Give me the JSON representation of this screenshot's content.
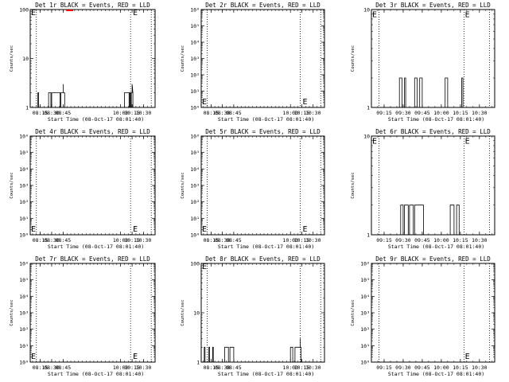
{
  "chart_data": [
    {
      "type": "line",
      "title": "Det 1r BLACK = Events, RED = LLD",
      "xlabel": "Start Time (08-Oct-17 08:01:40)",
      "ylabel": "Counts/sec",
      "xlim": [
        "08:02",
        "10:45"
      ],
      "x_ticks": [
        "08:15",
        "08:30",
        "08:45",
        "10:00",
        "10:15",
        "10:30"
      ],
      "y_scale": "log",
      "ylim": [
        1,
        100
      ],
      "y_ticks": [
        "1",
        "10",
        "100"
      ],
      "dotted_lines_x": [
        "08:10",
        "10:13",
        "10:40"
      ],
      "marker_labels": [
        {
          "text": "E",
          "x": "08:02",
          "y": 90
        },
        {
          "text": "E",
          "x": "10:15",
          "y": 90
        }
      ],
      "lld_indicator_x": [
        "08:49",
        "08:58"
      ],
      "series": [
        {
          "color": "#000000",
          "points": [
            [
              "08:12",
              1
            ],
            [
              "08:12",
              2
            ],
            [
              "08:13",
              2
            ],
            [
              "08:13",
              1
            ],
            [
              "08:26",
              1
            ],
            [
              "08:26",
              2
            ],
            [
              "08:29",
              2
            ],
            [
              "08:29",
              1
            ],
            [
              "08:30",
              1
            ],
            [
              "08:30",
              2
            ],
            [
              "08:41",
              2
            ],
            [
              "08:41",
              1
            ],
            [
              "08:42",
              1
            ],
            [
              "08:42",
              2
            ],
            [
              "08:45",
              2
            ],
            [
              "08:45",
              3
            ],
            [
              "08:45",
              2
            ],
            [
              "08:47",
              2
            ],
            [
              "08:47",
              1
            ],
            [
              "10:05",
              1
            ],
            [
              "10:05",
              2
            ],
            [
              "10:11",
              2
            ],
            [
              "10:11",
              1
            ],
            [
              "10:12",
              1
            ],
            [
              "10:12",
              2
            ],
            [
              "10:13",
              2
            ],
            [
              "10:13",
              1
            ],
            [
              "10:14",
              1
            ],
            [
              "10:14",
              2
            ],
            [
              "10:15",
              2
            ],
            [
              "10:15",
              3
            ],
            [
              "10:16",
              2
            ],
            [
              "10:16",
              1
            ]
          ]
        }
      ]
    },
    {
      "type": "line",
      "title": "Det 2r BLACK = Events, RED = LLD",
      "xlabel": "Start Time (08-Oct-17 08:01:40)",
      "ylabel": "Counts/sec",
      "xlim": [
        "08:02",
        "10:45"
      ],
      "x_ticks": [
        "08:15",
        "08:30",
        "08:45",
        "10:00",
        "10:15",
        "10:30"
      ],
      "y_scale": "log",
      "ylim": [
        1,
        1000000
      ],
      "y_ticks": [
        "10⁰",
        "10¹",
        "10²",
        "10³",
        "10⁴",
        "10⁵",
        "10⁶"
      ],
      "dotted_lines_x": [
        "08:10",
        "10:13",
        "10:40"
      ],
      "marker_labels": [
        {
          "text": "E",
          "x": "08:02",
          "y": 2.5
        },
        {
          "text": "E",
          "x": "10:15",
          "y": 2.5
        }
      ],
      "series": []
    },
    {
      "type": "line",
      "title": "Det 3r BLACK = Events, RED = LLD",
      "xlabel": "Start Time (08-Oct-17 08:01:40)",
      "ylabel": "Counts/sec",
      "xlim": [
        "09:05",
        "10:42"
      ],
      "x_ticks": [
        "09:15",
        "09:30",
        "09:45",
        "10:00",
        "10:15",
        "10:30"
      ],
      "y_scale": "log",
      "ylim": [
        1,
        10
      ],
      "y_ticks": [
        "1",
        "10"
      ],
      "dotted_lines_x": [
        "09:11",
        "10:18",
        "10:38"
      ],
      "marker_labels": [
        {
          "text": "E",
          "x": "09:05",
          "y": 9
        },
        {
          "text": "E",
          "x": "10:18",
          "y": 9
        }
      ],
      "series": [
        {
          "color": "#000000",
          "points": [
            [
              "09:27",
              1
            ],
            [
              "09:27",
              2
            ],
            [
              "09:29",
              2
            ],
            [
              "09:29",
              1
            ],
            [
              "09:31",
              1
            ],
            [
              "09:31",
              2
            ],
            [
              "09:32",
              2
            ],
            [
              "09:32",
              1
            ],
            [
              "09:39",
              1
            ],
            [
              "09:39",
              2
            ],
            [
              "09:41",
              2
            ],
            [
              "09:41",
              1
            ],
            [
              "09:43",
              1
            ],
            [
              "09:43",
              2
            ],
            [
              "09:45",
              2
            ],
            [
              "09:45",
              1
            ],
            [
              "10:03",
              1
            ],
            [
              "10:03",
              2
            ],
            [
              "10:05",
              2
            ],
            [
              "10:05",
              1
            ],
            [
              "10:16",
              1
            ],
            [
              "10:16",
              2
            ],
            [
              "10:17",
              2
            ],
            [
              "10:17",
              1
            ]
          ]
        }
      ]
    },
    {
      "type": "line",
      "title": "Det 4r BLACK = Events, RED = LLD",
      "xlabel": "Start Time (08-Oct-17 08:01:40)",
      "ylabel": "Counts/sec",
      "xlim": [
        "08:02",
        "10:45"
      ],
      "x_ticks": [
        "08:15",
        "08:30",
        "08:45",
        "10:00",
        "10:15",
        "10:30"
      ],
      "y_scale": "log",
      "ylim": [
        1,
        1000000
      ],
      "y_ticks": [
        "10⁰",
        "10¹",
        "10²",
        "10³",
        "10⁴",
        "10⁵",
        "10⁶"
      ],
      "dotted_lines_x": [
        "08:10",
        "10:13",
        "10:40"
      ],
      "marker_labels": [
        {
          "text": "E",
          "x": "08:02",
          "y": 2.5
        },
        {
          "text": "E",
          "x": "10:15",
          "y": 2.5
        }
      ],
      "series": []
    },
    {
      "type": "line",
      "title": "Det 5r BLACK = Events, RED = LLD",
      "xlabel": "Start Time (08-Oct-17 08:01:40)",
      "ylabel": "Counts/sec",
      "xlim": [
        "08:02",
        "10:45"
      ],
      "x_ticks": [
        "08:15",
        "08:30",
        "08:45",
        "10:00",
        "10:15",
        "10:30"
      ],
      "y_scale": "log",
      "ylim": [
        1,
        1000000
      ],
      "y_ticks": [
        "10⁰",
        "10¹",
        "10²",
        "10³",
        "10⁴",
        "10⁵",
        "10⁶"
      ],
      "dotted_lines_x": [
        "08:10",
        "10:13",
        "10:40"
      ],
      "marker_labels": [
        {
          "text": "E",
          "x": "08:02",
          "y": 2.5
        },
        {
          "text": "E",
          "x": "10:15",
          "y": 2.5
        }
      ],
      "series": []
    },
    {
      "type": "line",
      "title": "Det 6r BLACK = Events, RED = LLD",
      "xlabel": "Start Time (08-Oct-17 08:01:40)",
      "ylabel": "Counts/sec",
      "xlim": [
        "09:05",
        "10:42"
      ],
      "x_ticks": [
        "09:15",
        "09:30",
        "09:45",
        "10:00",
        "10:15",
        "10:30"
      ],
      "y_scale": "log",
      "ylim": [
        1,
        10
      ],
      "y_ticks": [
        "1",
        "10"
      ],
      "dotted_lines_x": [
        "09:11",
        "10:18",
        "10:38"
      ],
      "marker_labels": [
        {
          "text": "E",
          "x": "09:05",
          "y": 9
        },
        {
          "text": "E",
          "x": "10:18",
          "y": 9
        }
      ],
      "series": [
        {
          "color": "#000000",
          "points": [
            [
              "09:28",
              1
            ],
            [
              "09:28",
              2
            ],
            [
              "09:30",
              2
            ],
            [
              "09:30",
              1
            ],
            [
              "09:31",
              1
            ],
            [
              "09:31",
              2
            ],
            [
              "09:34",
              2
            ],
            [
              "09:34",
              1
            ],
            [
              "09:35",
              1
            ],
            [
              "09:35",
              2
            ],
            [
              "09:38",
              2
            ],
            [
              "09:38",
              1
            ],
            [
              "09:39",
              1
            ],
            [
              "09:39",
              2
            ],
            [
              "09:46",
              2
            ],
            [
              "09:46",
              1
            ],
            [
              "10:07",
              1
            ],
            [
              "10:07",
              2
            ],
            [
              "10:10",
              2
            ],
            [
              "10:10",
              1
            ],
            [
              "10:12",
              1
            ],
            [
              "10:12",
              2
            ],
            [
              "10:14",
              2
            ],
            [
              "10:14",
              1
            ]
          ]
        }
      ]
    },
    {
      "type": "line",
      "title": "Det 7r BLACK = Events, RED = LLD",
      "xlabel": "Start Time (08-Oct-17 08:01:40)",
      "ylabel": "Counts/sec",
      "xlim": [
        "08:02",
        "10:45"
      ],
      "x_ticks": [
        "08:15",
        "08:30",
        "08:45",
        "10:00",
        "10:15",
        "10:30"
      ],
      "y_scale": "log",
      "ylim": [
        1,
        1000000
      ],
      "y_ticks": [
        "10⁰",
        "10¹",
        "10²",
        "10³",
        "10⁴",
        "10⁵",
        "10⁶"
      ],
      "dotted_lines_x": [
        "08:10",
        "10:13",
        "10:40"
      ],
      "marker_labels": [
        {
          "text": "E",
          "x": "08:02",
          "y": 2.5
        },
        {
          "text": "E",
          "x": "10:15",
          "y": 2.5
        }
      ],
      "series": []
    },
    {
      "type": "line",
      "title": "Det 8r BLACK = Events, RED = LLD",
      "xlabel": "Start Time (08-Oct-17 08:01:40)",
      "ylabel": "Counts/sec",
      "xlim": [
        "08:02",
        "10:45"
      ],
      "x_ticks": [
        "08:15",
        "08:30",
        "08:45",
        "10:00",
        "10:15",
        "10:30"
      ],
      "y_scale": "log",
      "ylim": [
        1,
        100
      ],
      "y_ticks": [
        "1",
        "10",
        "100"
      ],
      "dotted_lines_x": [
        "08:10",
        "10:13",
        "10:40"
      ],
      "marker_labels": [
        {
          "text": "E",
          "x": "08:02",
          "y": 90
        }
      ],
      "series": [
        {
          "color": "#000000",
          "points": [
            [
              "08:06",
              1
            ],
            [
              "08:06",
              2
            ],
            [
              "08:07",
              2
            ],
            [
              "08:07",
              1
            ],
            [
              "08:12",
              1
            ],
            [
              "08:12",
              2
            ],
            [
              "08:13",
              2
            ],
            [
              "08:13",
              1
            ],
            [
              "08:17",
              1
            ],
            [
              "08:17",
              2
            ],
            [
              "08:18",
              2
            ],
            [
              "08:18",
              1
            ],
            [
              "08:33",
              1
            ],
            [
              "08:33",
              2
            ],
            [
              "08:38",
              2
            ],
            [
              "08:38",
              1
            ],
            [
              "08:40",
              1
            ],
            [
              "08:40",
              2
            ],
            [
              "08:45",
              2
            ],
            [
              "08:45",
              1
            ],
            [
              "10:00",
              1
            ],
            [
              "10:00",
              2
            ],
            [
              "10:03",
              2
            ],
            [
              "10:03",
              1
            ],
            [
              "10:06",
              1
            ],
            [
              "10:06",
              2
            ],
            [
              "10:13",
              2
            ],
            [
              "10:13",
              3
            ],
            [
              "10:13",
              2
            ],
            [
              "10:14",
              2
            ],
            [
              "10:14",
              1
            ]
          ]
        }
      ]
    },
    {
      "type": "line",
      "title": "Det 9r BLACK = Events, RED = LLD",
      "xlabel": "Start Time (08-Oct-17 08:01:40)",
      "ylabel": "Counts/sec",
      "xlim": [
        "09:05",
        "10:42"
      ],
      "x_ticks": [
        "09:15",
        "09:30",
        "09:45",
        "10:00",
        "10:15",
        "10:30"
      ],
      "y_scale": "log",
      "ylim": [
        1,
        1000000
      ],
      "y_ticks": [
        "10⁰",
        "10¹",
        "10²",
        "10³",
        "10⁴",
        "10⁵",
        "10⁶"
      ],
      "dotted_lines_x": [
        "09:11",
        "10:18",
        "10:38"
      ],
      "marker_labels": [
        {
          "text": "E",
          "x": "10:18",
          "y": 2.5
        }
      ],
      "series": []
    }
  ]
}
